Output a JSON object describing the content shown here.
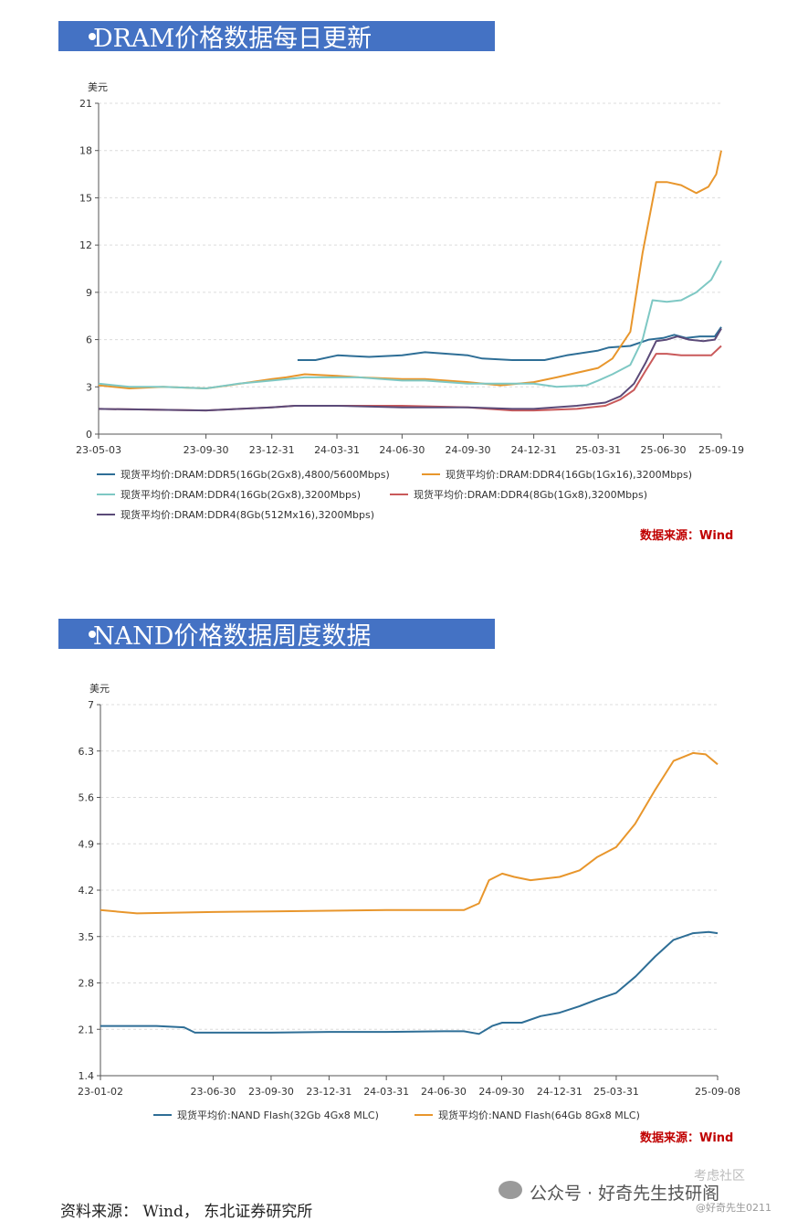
{
  "dram": {
    "banner": "DRAM价格数据每日更新",
    "source": "数据来源：Wind"
  },
  "nand": {
    "banner": "NAND价格数据周度数据",
    "source": "数据来源：Wind"
  },
  "footer": {
    "source": "资料来源： Wind， 东北证券研究所",
    "watermark": "公众号 · 好奇先生技研阁",
    "watermark_tag": "@好奇先生0211",
    "watermark_brand": "考虑社区"
  },
  "chart_data": [
    {
      "type": "line",
      "ylabel": "美元",
      "ylim": [
        0,
        21
      ],
      "yticks": [
        0,
        3,
        6,
        9,
        12,
        15,
        18,
        21
      ],
      "xlim": [
        "2023-05-03",
        "2025-09-19"
      ],
      "xtick_labels": [
        "23-05-03",
        "23-09-30",
        "23-12-31",
        "24-03-31",
        "24-06-30",
        "24-09-30",
        "24-12-31",
        "25-03-31",
        "25-06-30",
        "25-09-19"
      ],
      "xticks": [
        "2023-05-03",
        "2023-09-30",
        "2023-12-31",
        "2024-03-31",
        "2024-06-30",
        "2024-09-30",
        "2024-12-31",
        "2025-03-31",
        "2025-06-30",
        "2025-09-19"
      ],
      "grid": true,
      "legend_position": "bottom",
      "series": [
        {
          "name": "现货平均价:DRAM:DDR5(16Gb(2Gx8),4800/5600Mbps)",
          "color": "#2e6e96",
          "points": [
            [
              "2024-02-05",
              4.7
            ],
            [
              "2024-03-01",
              4.7
            ],
            [
              "2024-04-01",
              5.0
            ],
            [
              "2024-05-15",
              4.9
            ],
            [
              "2024-06-30",
              5.0
            ],
            [
              "2024-08-01",
              5.2
            ],
            [
              "2024-09-30",
              5.0
            ],
            [
              "2024-10-20",
              4.8
            ],
            [
              "2024-12-01",
              4.7
            ],
            [
              "2025-01-15",
              4.7
            ],
            [
              "2025-02-15",
              5.0
            ],
            [
              "2025-03-31",
              5.3
            ],
            [
              "2025-04-15",
              5.5
            ],
            [
              "2025-05-15",
              5.6
            ],
            [
              "2025-06-10",
              6.0
            ],
            [
              "2025-06-30",
              6.1
            ],
            [
              "2025-07-15",
              6.3
            ],
            [
              "2025-08-01",
              6.1
            ],
            [
              "2025-08-20",
              6.2
            ],
            [
              "2025-09-10",
              6.2
            ],
            [
              "2025-09-19",
              6.8
            ]
          ]
        },
        {
          "name": "现货平均价:DRAM:DDR4(16Gb(1Gx16),3200Mbps)",
          "color": "#e8962c",
          "points": [
            [
              "2023-05-03",
              3.1
            ],
            [
              "2023-06-15",
              2.9
            ],
            [
              "2023-08-01",
              3.0
            ],
            [
              "2023-09-30",
              2.9
            ],
            [
              "2023-11-01",
              3.1
            ],
            [
              "2023-12-31",
              3.5
            ],
            [
              "2024-01-20",
              3.6
            ],
            [
              "2024-02-15",
              3.8
            ],
            [
              "2024-03-31",
              3.7
            ],
            [
              "2024-05-01",
              3.6
            ],
            [
              "2024-06-30",
              3.5
            ],
            [
              "2024-08-01",
              3.5
            ],
            [
              "2024-09-30",
              3.3
            ],
            [
              "2024-11-15",
              3.1
            ],
            [
              "2024-12-31",
              3.3
            ],
            [
              "2025-02-01",
              3.6
            ],
            [
              "2025-03-31",
              4.2
            ],
            [
              "2025-04-20",
              4.8
            ],
            [
              "2025-05-15",
              6.5
            ],
            [
              "2025-06-01",
              11.5
            ],
            [
              "2025-06-20",
              16.0
            ],
            [
              "2025-07-05",
              16.0
            ],
            [
              "2025-07-25",
              15.8
            ],
            [
              "2025-08-15",
              15.3
            ],
            [
              "2025-09-01",
              15.7
            ],
            [
              "2025-09-12",
              16.5
            ],
            [
              "2025-09-19",
              18.0
            ]
          ]
        },
        {
          "name": "现货平均价:DRAM:DDR4(16Gb(2Gx8),3200Mbps)",
          "color": "#7ec8c4",
          "points": [
            [
              "2023-05-03",
              3.2
            ],
            [
              "2023-06-15",
              3.0
            ],
            [
              "2023-08-01",
              3.0
            ],
            [
              "2023-09-30",
              2.9
            ],
            [
              "2023-11-15",
              3.2
            ],
            [
              "2023-12-31",
              3.4
            ],
            [
              "2024-02-15",
              3.6
            ],
            [
              "2024-03-31",
              3.6
            ],
            [
              "2024-05-01",
              3.6
            ],
            [
              "2024-06-30",
              3.4
            ],
            [
              "2024-08-01",
              3.4
            ],
            [
              "2024-09-30",
              3.2
            ],
            [
              "2024-12-31",
              3.2
            ],
            [
              "2025-02-01",
              3.0
            ],
            [
              "2025-03-15",
              3.1
            ],
            [
              "2025-03-31",
              3.4
            ],
            [
              "2025-04-20",
              3.8
            ],
            [
              "2025-05-15",
              4.4
            ],
            [
              "2025-06-01",
              6.0
            ],
            [
              "2025-06-15",
              8.5
            ],
            [
              "2025-07-05",
              8.4
            ],
            [
              "2025-07-25",
              8.5
            ],
            [
              "2025-08-15",
              9.0
            ],
            [
              "2025-09-05",
              9.8
            ],
            [
              "2025-09-19",
              11.0
            ]
          ]
        },
        {
          "name": "现货平均价:DRAM:DDR4(8Gb(1Gx8),3200Mbps)",
          "color": "#c9595a",
          "points": [
            [
              "2023-05-03",
              1.6
            ],
            [
              "2023-09-30",
              1.5
            ],
            [
              "2023-12-31",
              1.7
            ],
            [
              "2024-02-01",
              1.8
            ],
            [
              "2024-03-31",
              1.8
            ],
            [
              "2024-06-30",
              1.8
            ],
            [
              "2024-09-30",
              1.7
            ],
            [
              "2024-12-01",
              1.5
            ],
            [
              "2024-12-31",
              1.5
            ],
            [
              "2025-03-01",
              1.6
            ],
            [
              "2025-04-10",
              1.8
            ],
            [
              "2025-05-01",
              2.2
            ],
            [
              "2025-05-20",
              2.8
            ],
            [
              "2025-06-05",
              4.0
            ],
            [
              "2025-06-20",
              5.1
            ],
            [
              "2025-07-05",
              5.1
            ],
            [
              "2025-07-25",
              5.0
            ],
            [
              "2025-08-15",
              5.0
            ],
            [
              "2025-09-05",
              5.0
            ],
            [
              "2025-09-19",
              5.6
            ]
          ]
        },
        {
          "name": "现货平均价:DRAM:DDR4(8Gb(512Mx16),3200Mbps)",
          "color": "#5b4a78",
          "points": [
            [
              "2023-05-03",
              1.6
            ],
            [
              "2023-09-30",
              1.5
            ],
            [
              "2023-12-31",
              1.7
            ],
            [
              "2024-02-01",
              1.8
            ],
            [
              "2024-03-31",
              1.8
            ],
            [
              "2024-06-30",
              1.7
            ],
            [
              "2024-09-30",
              1.7
            ],
            [
              "2024-12-01",
              1.6
            ],
            [
              "2024-12-31",
              1.6
            ],
            [
              "2025-03-01",
              1.8
            ],
            [
              "2025-04-10",
              2.0
            ],
            [
              "2025-05-01",
              2.4
            ],
            [
              "2025-05-20",
              3.2
            ],
            [
              "2025-06-05",
              4.5
            ],
            [
              "2025-06-20",
              5.9
            ],
            [
              "2025-07-05",
              6.0
            ],
            [
              "2025-07-20",
              6.2
            ],
            [
              "2025-08-05",
              6.0
            ],
            [
              "2025-08-25",
              5.9
            ],
            [
              "2025-09-10",
              6.0
            ],
            [
              "2025-09-19",
              6.7
            ]
          ]
        }
      ]
    },
    {
      "type": "line",
      "ylabel": "美元",
      "ylim": [
        1.4,
        7
      ],
      "yticks": [
        1.4,
        2.1,
        2.8,
        3.5,
        4.2,
        4.9,
        5.6,
        6.3,
        7
      ],
      "ytick_labels": [
        "1.4",
        "2.1",
        "2.8",
        "3.5",
        "4.2",
        "4.9",
        "5.6",
        "6.3",
        "7"
      ],
      "xlim": [
        "2023-01-02",
        "2025-09-08"
      ],
      "xtick_labels": [
        "23-01-02",
        "23-06-30",
        "23-09-30",
        "23-12-31",
        "24-03-31",
        "24-06-30",
        "24-09-30",
        "24-12-31",
        "25-03-31",
        "25-09-08"
      ],
      "xticks": [
        "2023-01-02",
        "2023-06-30",
        "2023-09-30",
        "2023-12-31",
        "2024-03-31",
        "2024-06-30",
        "2024-09-30",
        "2024-12-31",
        "2025-03-31",
        "2025-09-08"
      ],
      "grid": true,
      "legend_position": "bottom",
      "series": [
        {
          "name": "现货平均价:NAND Flash(32Gb 4Gx8 MLC)",
          "color": "#2e6e96",
          "points": [
            [
              "2023-01-02",
              2.15
            ],
            [
              "2023-04-01",
              2.15
            ],
            [
              "2023-05-15",
              2.13
            ],
            [
              "2023-06-01",
              2.05
            ],
            [
              "2023-09-30",
              2.05
            ],
            [
              "2023-12-31",
              2.06
            ],
            [
              "2024-03-31",
              2.06
            ],
            [
              "2024-06-30",
              2.07
            ],
            [
              "2024-08-01",
              2.07
            ],
            [
              "2024-08-25",
              2.03
            ],
            [
              "2024-09-15",
              2.15
            ],
            [
              "2024-10-01",
              2.2
            ],
            [
              "2024-11-01",
              2.2
            ],
            [
              "2024-12-01",
              2.3
            ],
            [
              "2024-12-31",
              2.35
            ],
            [
              "2025-02-01",
              2.45
            ],
            [
              "2025-03-01",
              2.55
            ],
            [
              "2025-03-31",
              2.65
            ],
            [
              "2025-05-01",
              2.9
            ],
            [
              "2025-06-01",
              3.2
            ],
            [
              "2025-06-30",
              3.45
            ],
            [
              "2025-07-31",
              3.55
            ],
            [
              "2025-08-25",
              3.57
            ],
            [
              "2025-09-08",
              3.55
            ]
          ]
        },
        {
          "name": "现货平均价:NAND Flash(64Gb 8Gx8 MLC)",
          "color": "#e8962c",
          "points": [
            [
              "2023-01-02",
              3.9
            ],
            [
              "2023-03-01",
              3.85
            ],
            [
              "2023-06-30",
              3.87
            ],
            [
              "2023-09-30",
              3.88
            ],
            [
              "2023-12-31",
              3.89
            ],
            [
              "2024-03-31",
              3.9
            ],
            [
              "2024-06-30",
              3.9
            ],
            [
              "2024-08-01",
              3.9
            ],
            [
              "2024-08-25",
              4.0
            ],
            [
              "2024-09-10",
              4.35
            ],
            [
              "2024-10-01",
              4.45
            ],
            [
              "2024-10-20",
              4.4
            ],
            [
              "2024-11-15",
              4.35
            ],
            [
              "2024-12-31",
              4.4
            ],
            [
              "2025-02-01",
              4.5
            ],
            [
              "2025-03-01",
              4.7
            ],
            [
              "2025-03-31",
              4.85
            ],
            [
              "2025-04-30",
              5.2
            ],
            [
              "2025-05-31",
              5.7
            ],
            [
              "2025-06-30",
              6.15
            ],
            [
              "2025-07-31",
              6.27
            ],
            [
              "2025-08-20",
              6.25
            ],
            [
              "2025-09-08",
              6.1
            ]
          ]
        }
      ]
    }
  ]
}
